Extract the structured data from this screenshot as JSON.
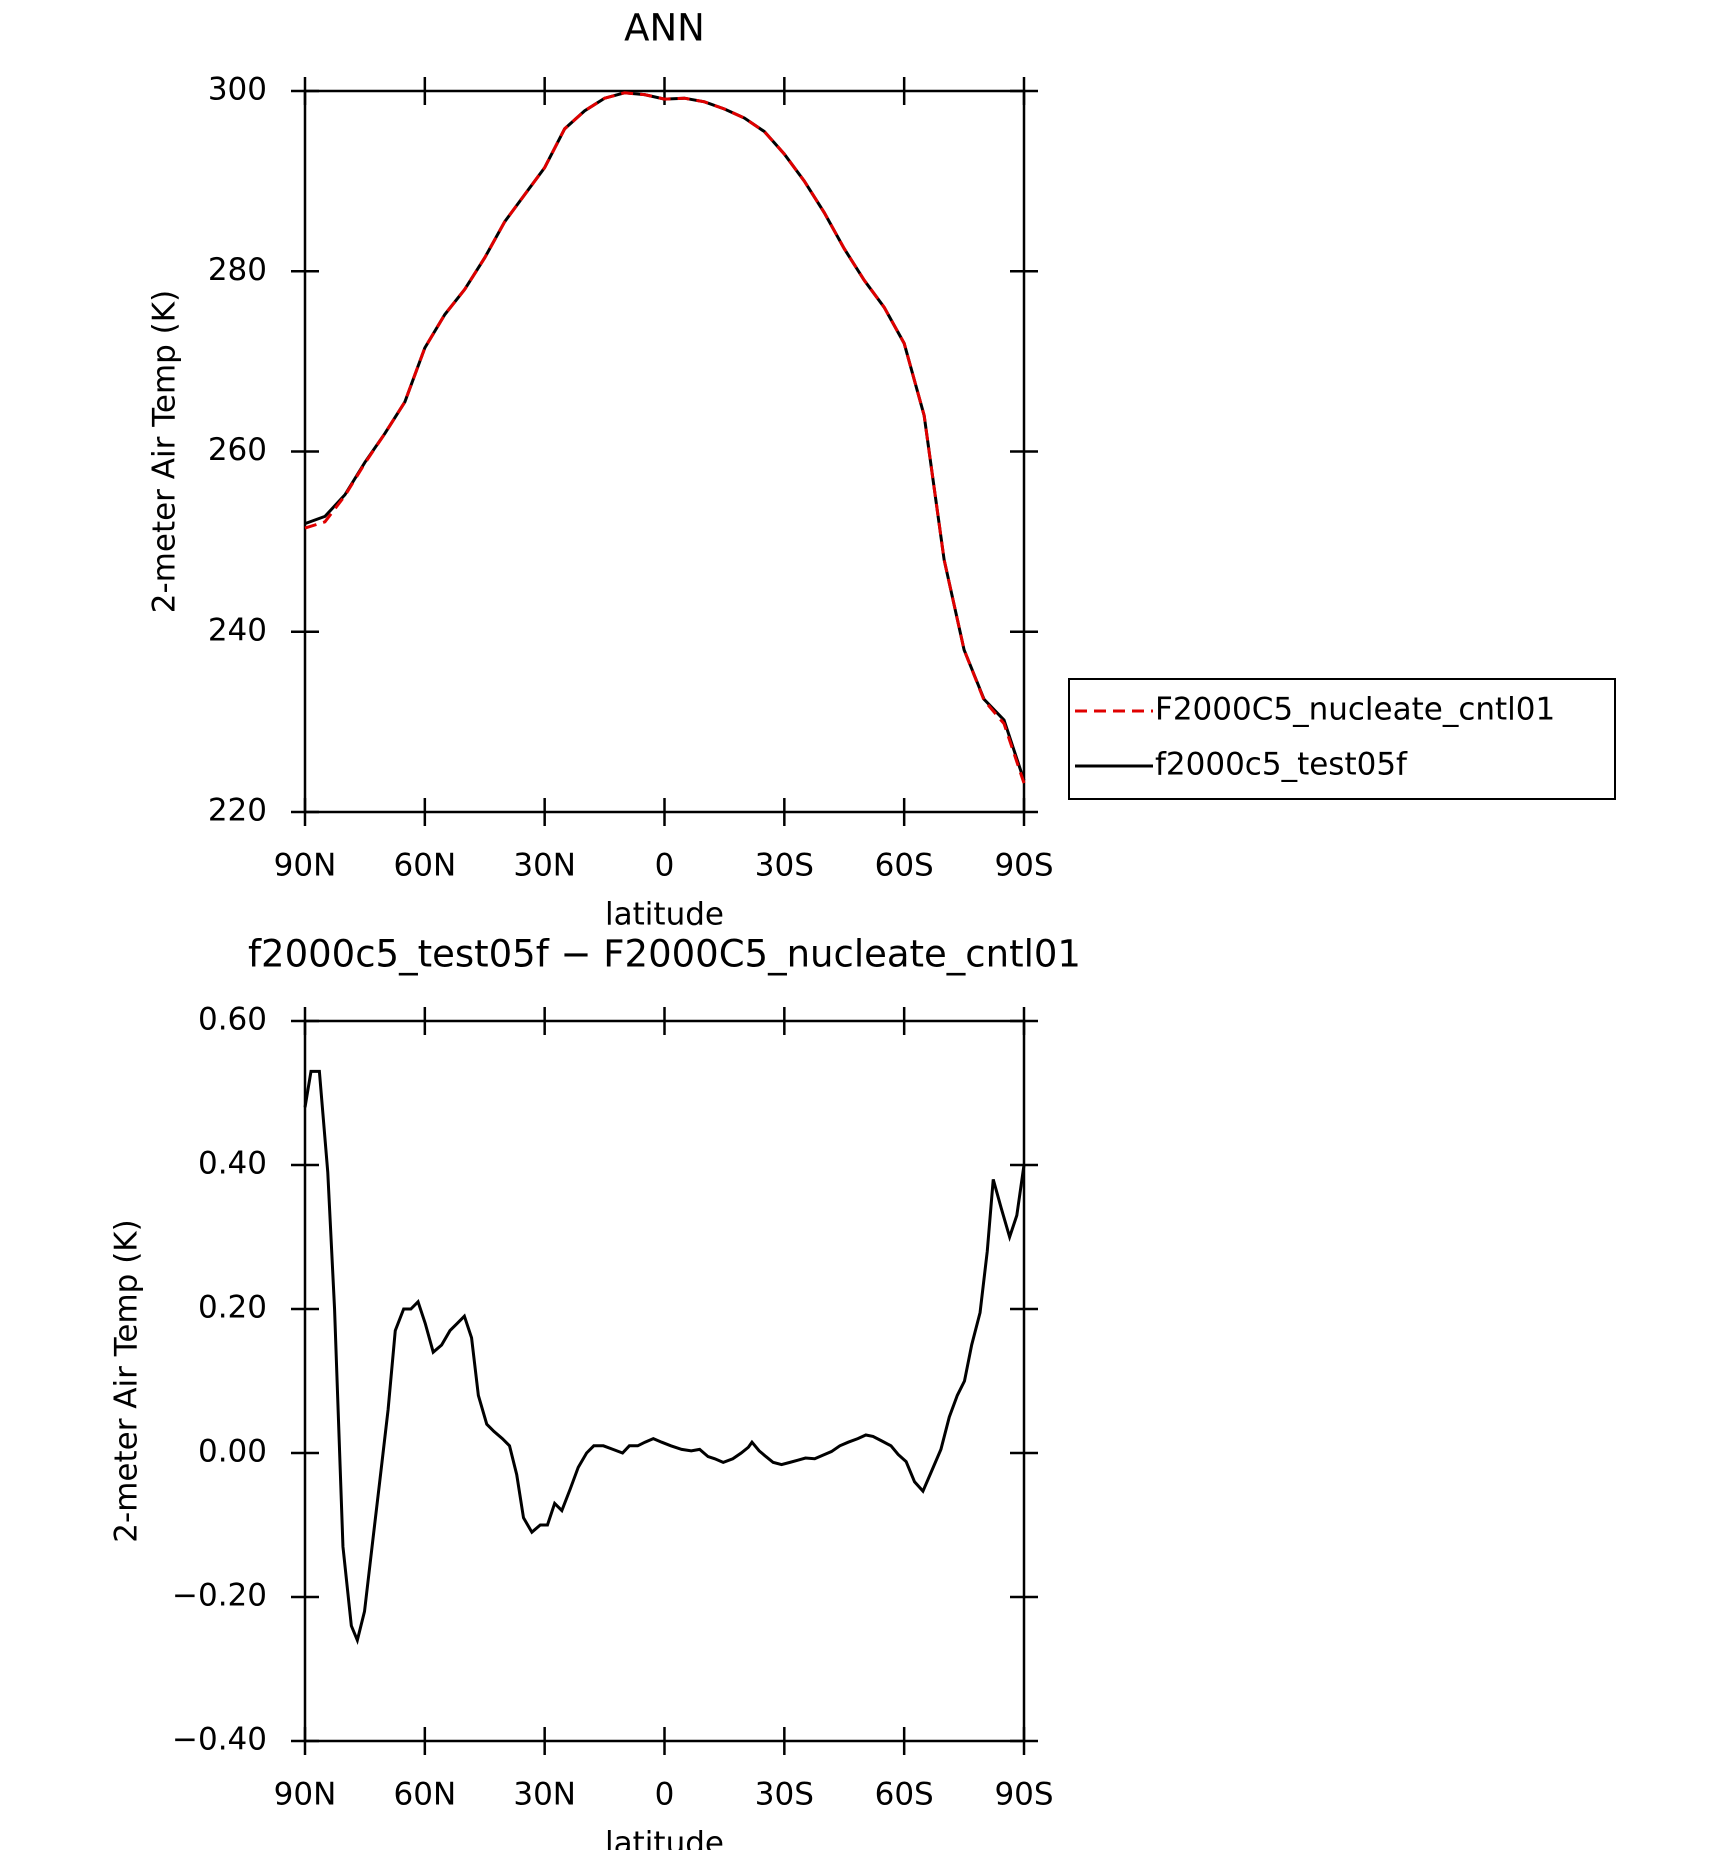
{
  "chart_data": [
    {
      "type": "line",
      "title": "ANN",
      "xlabel": "latitude",
      "ylabel": "2-meter Air Temp (K)",
      "xlim": [
        90,
        -90
      ],
      "ylim": [
        220,
        300
      ],
      "xticks": [
        {
          "value": 90,
          "label": "90N"
        },
        {
          "value": 60,
          "label": "60N"
        },
        {
          "value": 30,
          "label": "30N"
        },
        0,
        {
          "value": -30,
          "label": "30S"
        },
        {
          "value": -60,
          "label": "60S"
        },
        {
          "value": -90,
          "label": "90S"
        }
      ],
      "yticks": [
        220,
        240,
        260,
        280,
        300
      ],
      "legend": "right",
      "x": [
        90,
        85,
        80,
        75,
        70,
        65,
        60,
        55,
        50,
        45,
        40,
        35,
        30,
        25,
        20,
        15,
        10,
        5,
        0,
        -5,
        -10,
        -15,
        -20,
        -25,
        -30,
        -35,
        -40,
        -45,
        -50,
        -55,
        -60,
        -65,
        -70,
        -75,
        -80,
        -85,
        -90
      ],
      "series": [
        {
          "name": "F2000C5_nucleate_cntl01",
          "color": "#e00000",
          "style": "dashed",
          "values": [
            251.5,
            252.2,
            255.1,
            258.7,
            262.0,
            265.5,
            271.5,
            275.2,
            278.0,
            281.5,
            285.5,
            288.5,
            291.5,
            295.8,
            297.8,
            299.2,
            299.8,
            299.6,
            299.1,
            299.2,
            298.8,
            298.0,
            297.0,
            295.5,
            293.0,
            290.0,
            286.5,
            282.5,
            279.0,
            276.0,
            272.0,
            264.0,
            248.0,
            238.0,
            232.4,
            229.8,
            223.2
          ]
        },
        {
          "name": "f2000c5_test05f",
          "color": "#000000",
          "style": "solid",
          "values": [
            252.0,
            252.8,
            255.2,
            258.8,
            262.0,
            265.5,
            271.5,
            275.2,
            278.0,
            281.5,
            285.5,
            288.5,
            291.5,
            295.8,
            297.8,
            299.2,
            299.8,
            299.6,
            299.1,
            299.2,
            298.8,
            298.0,
            297.0,
            295.5,
            293.0,
            290.0,
            286.5,
            282.5,
            279.0,
            276.0,
            272.0,
            264.0,
            248.0,
            238.0,
            232.5,
            230.2,
            223.5
          ]
        }
      ]
    },
    {
      "type": "line",
      "title": "f2000c5_test05f − F2000C5_nucleate_cntl01",
      "xlabel": "latitude",
      "ylabel": "2-meter Air Temp (K)",
      "xlim": [
        90,
        -90
      ],
      "ylim": [
        -0.4,
        0.6
      ],
      "xticks": [
        {
          "value": 90,
          "label": "90N"
        },
        {
          "value": 60,
          "label": "60N"
        },
        {
          "value": 30,
          "label": "30N"
        },
        0,
        {
          "value": -30,
          "label": "30S"
        },
        {
          "value": -60,
          "label": "60S"
        },
        {
          "value": -90,
          "label": "90S"
        }
      ],
      "yticks": [
        {
          "value": -0.4,
          "label": "−0.40"
        },
        {
          "value": -0.2,
          "label": "−0.20"
        },
        {
          "value": 0,
          "label": "0.00"
        },
        {
          "value": 0.2,
          "label": "0.20"
        },
        {
          "value": 0.4,
          "label": "0.40"
        },
        {
          "value": 0.6,
          "label": "0.60"
        }
      ],
      "x": [
        90,
        88.5,
        86.4,
        84.3,
        82.6,
        80.5,
        78.4,
        76.9,
        75.1,
        73.0,
        71.3,
        69.2,
        67.4,
        65.3,
        63.5,
        61.7,
        59.9,
        57.9,
        55.8,
        53.7,
        51.9,
        50.1,
        48.3,
        46.6,
        44.5,
        42.7,
        40.6,
        38.8,
        37.0,
        35.3,
        33.2,
        31.1,
        29.3,
        27.5,
        25.7,
        23.6,
        21.6,
        19.5,
        17.7,
        15.3,
        12.9,
        10.5,
        8.8,
        6.7,
        4.9,
        2.8,
        0.7,
        -1.6,
        -4.3,
        -6.7,
        -8.8,
        -10.9,
        -12.6,
        -14.7,
        -17.1,
        -19.2,
        -21.0,
        -21.9,
        -23.7,
        -25.4,
        -27.2,
        -29.3,
        -31.4,
        -33.4,
        -35.3,
        -37.6,
        -39.7,
        -41.8,
        -43.9,
        -46.0,
        -48.4,
        -50.4,
        -52.2,
        -54.3,
        -56.7,
        -58.5,
        -60.5,
        -62.6,
        -64.7,
        -66.8,
        -69.2,
        -71.3,
        -73.3,
        -75.1,
        -76.9,
        -79.0,
        -80.8,
        -82.3,
        -84.3,
        -86.4,
        -88.2,
        -90
      ],
      "series": [
        {
          "color": "#000000",
          "style": "solid",
          "values": [
            0.48,
            0.53,
            0.53,
            0.39,
            0.2,
            -0.13,
            -0.24,
            -0.26,
            -0.22,
            -0.12,
            -0.04,
            0.06,
            0.17,
            0.2,
            0.2,
            0.21,
            0.18,
            0.14,
            0.15,
            0.17,
            0.18,
            0.19,
            0.16,
            0.08,
            0.04,
            0.03,
            0.02,
            0.01,
            -0.03,
            -0.09,
            -0.11,
            -0.1,
            -0.1,
            -0.07,
            -0.08,
            -0.05,
            -0.02,
            0.0,
            0.01,
            0.01,
            0.005,
            0.0,
            0.01,
            0.01,
            0.015,
            0.02,
            0.015,
            0.01,
            0.005,
            0.003,
            0.005,
            -0.005,
            -0.008,
            -0.013,
            -0.008,
            0.0,
            0.008,
            0.015,
            0.003,
            -0.005,
            -0.013,
            -0.016,
            -0.013,
            -0.01,
            -0.007,
            -0.008,
            -0.003,
            0.002,
            0.01,
            0.015,
            0.02,
            0.025,
            0.023,
            0.017,
            0.01,
            -0.002,
            -0.012,
            -0.04,
            -0.053,
            -0.026,
            0.005,
            0.05,
            0.08,
            0.1,
            0.15,
            0.195,
            0.28,
            0.38,
            0.34,
            0.3,
            0.33,
            0.4
          ]
        }
      ]
    }
  ]
}
